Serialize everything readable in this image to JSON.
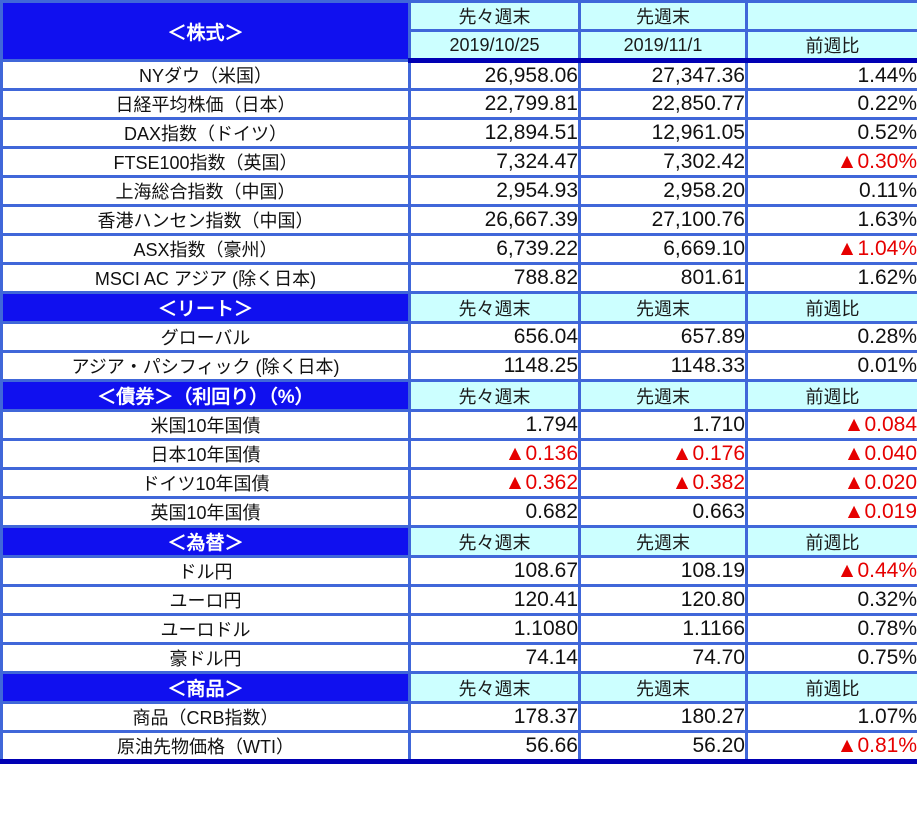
{
  "header": {
    "col_prev2_label": "先々週末",
    "col_prev1_label": "先週末",
    "col_change_label": "前週比",
    "date_prev2": "2019/10/25",
    "date_prev1": "2019/11/1",
    "corner_blank": ""
  },
  "colors": {
    "section_fill": "#1010ef",
    "section_text": "#ffffff",
    "header_fill": "#ccffff",
    "cell_border": "#4067d9",
    "bottom_border": "#0000b4",
    "negative_text": "#e60000",
    "value_text": "#111111"
  },
  "sections": [
    {
      "title": "＜株式＞",
      "rows": [
        {
          "label": "NYダウ（米国）",
          "prev2": "26,958.06",
          "prev1": "27,347.36",
          "change": "1.44%"
        },
        {
          "label": "日経平均株価（日本）",
          "prev2": "22,799.81",
          "prev1": "22,850.77",
          "change": "0.22%"
        },
        {
          "label": "DAX指数（ドイツ）",
          "prev2": "12,894.51",
          "prev1": "12,961.05",
          "change": "0.52%"
        },
        {
          "label": "FTSE100指数（英国）",
          "prev2": "7,324.47",
          "prev1": "7,302.42",
          "change": "▲0.30%"
        },
        {
          "label": "上海総合指数（中国）",
          "prev2": "2,954.93",
          "prev1": "2,958.20",
          "change": "0.11%"
        },
        {
          "label": "香港ハンセン指数（中国）",
          "prev2": "26,667.39",
          "prev1": "27,100.76",
          "change": "1.63%"
        },
        {
          "label": "ASX指数（豪州）",
          "prev2": "6,739.22",
          "prev1": "6,669.10",
          "change": "▲1.04%"
        },
        {
          "label": "MSCI AC アジア (除く日本)",
          "prev2": "788.82",
          "prev1": "801.61",
          "change": "1.62%"
        }
      ]
    },
    {
      "title": "＜リート＞",
      "rows": [
        {
          "label": "グローバル",
          "prev2": "656.04",
          "prev1": "657.89",
          "change": "0.28%"
        },
        {
          "label": "アジア・パシフィック (除く日本)",
          "prev2": "1148.25",
          "prev1": "1148.33",
          "change": "0.01%"
        }
      ]
    },
    {
      "title": "＜債券＞（利回り）（%）",
      "rows": [
        {
          "label": "米国10年国債",
          "prev2": "1.794",
          "prev1": "1.710",
          "change": "▲0.084"
        },
        {
          "label": "日本10年国債",
          "prev2": "▲0.136",
          "prev1": "▲0.176",
          "change": "▲0.040"
        },
        {
          "label": "ドイツ10年国債",
          "prev2": "▲0.362",
          "prev1": "▲0.382",
          "change": "▲0.020"
        },
        {
          "label": "英国10年国債",
          "prev2": "0.682",
          "prev1": "0.663",
          "change": "▲0.019"
        }
      ]
    },
    {
      "title": "＜為替＞",
      "rows": [
        {
          "label": "ドル円",
          "prev2": "108.67",
          "prev1": "108.19",
          "change": "▲0.44%"
        },
        {
          "label": "ユーロ円",
          "prev2": "120.41",
          "prev1": "120.80",
          "change": "0.32%"
        },
        {
          "label": "ユーロドル",
          "prev2": "1.1080",
          "prev1": "1.1166",
          "change": "0.78%"
        },
        {
          "label": "豪ドル円",
          "prev2": "74.14",
          "prev1": "74.70",
          "change": "0.75%"
        }
      ]
    },
    {
      "title": "＜商品＞",
      "rows": [
        {
          "label": "商品（CRB指数）",
          "prev2": "178.37",
          "prev1": "180.27",
          "change": "1.07%"
        },
        {
          "label": "原油先物価格（WTI）",
          "prev2": "56.66",
          "prev1": "56.20",
          "change": "▲0.81%"
        }
      ]
    }
  ]
}
